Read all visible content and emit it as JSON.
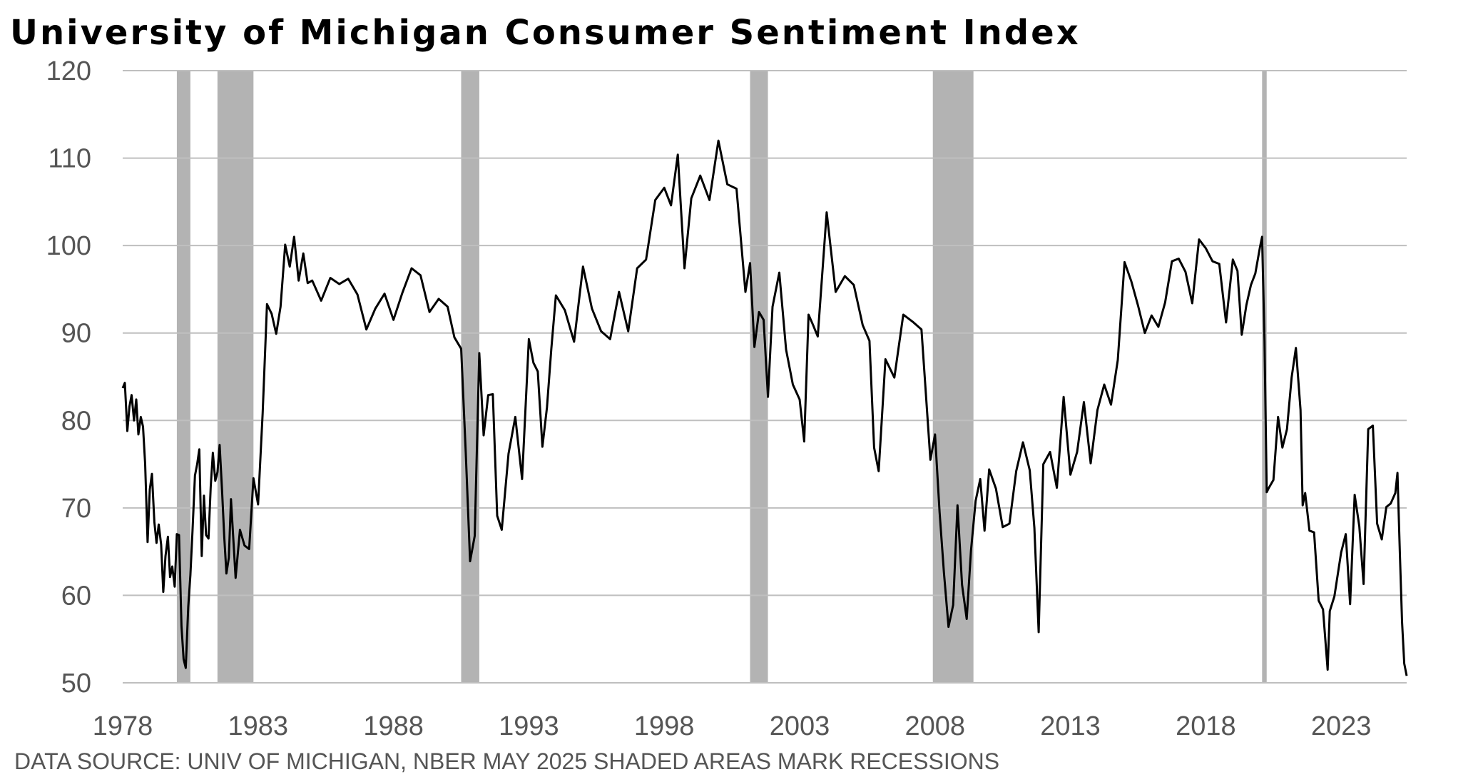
{
  "chart_data": {
    "type": "line",
    "title": "University of Michigan Consumer Sentiment Index",
    "source_note": "DATA SOURCE: UNIV OF MICHIGAN, NBER MAY 2025 SHADED AREAS MARK RECESSIONS",
    "xlabel": "",
    "ylabel": "",
    "xlim": [
      1978.0,
      2025.42
    ],
    "ylim": [
      50,
      120
    ],
    "yticks": [
      50,
      60,
      70,
      80,
      90,
      100,
      110,
      120
    ],
    "xticks": [
      1978,
      1983,
      1988,
      1993,
      1998,
      2003,
      2008,
      2013,
      2018,
      2023
    ],
    "grid": "horizontal",
    "legend": "none",
    "colors": {
      "line": "#000000",
      "grid": "#bfbfbf",
      "recession": "#b3b3b3",
      "tick": "#555555"
    },
    "recessions": [
      [
        1980.0,
        1980.5
      ],
      [
        1981.5,
        1982.83
      ],
      [
        1990.5,
        1991.17
      ],
      [
        2001.17,
        2001.83
      ],
      [
        2007.92,
        2009.42
      ],
      [
        2020.08,
        2020.25
      ]
    ],
    "series": [
      {
        "x": [
          1978.0,
          1978.08,
          1978.17,
          1978.25,
          1978.33,
          1978.42,
          1978.5,
          1978.58,
          1978.67,
          1978.75,
          1978.83,
          1978.92,
          1979.0,
          1979.08,
          1979.17,
          1979.25,
          1979.33,
          1979.42,
          1979.5,
          1979.58,
          1979.67,
          1979.75,
          1979.83,
          1979.92,
          1980.0,
          1980.08,
          1980.17,
          1980.25,
          1980.33,
          1980.42,
          1980.5,
          1980.58,
          1980.67,
          1980.75,
          1980.83,
          1980.92,
          1981.0,
          1981.08,
          1981.17,
          1981.25,
          1981.33,
          1981.42,
          1981.5,
          1981.58,
          1981.67,
          1981.75,
          1981.83,
          1981.92,
          1982.0,
          1982.17,
          1982.33,
          1982.5,
          1982.67,
          1982.83,
          1983.0,
          1983.17,
          1983.33,
          1983.5,
          1983.67,
          1983.83,
          1984.0,
          1984.17,
          1984.33,
          1984.5,
          1984.67,
          1984.83,
          1985.0,
          1985.33,
          1985.67,
          1986.0,
          1986.33,
          1986.67,
          1987.0,
          1987.33,
          1987.67,
          1988.0,
          1988.33,
          1988.67,
          1989.0,
          1989.33,
          1989.67,
          1990.0,
          1990.25,
          1990.5,
          1990.67,
          1990.83,
          1991.0,
          1991.17,
          1991.33,
          1991.5,
          1991.67,
          1991.83,
          1992.0,
          1992.25,
          1992.5,
          1992.75,
          1993.0,
          1993.17,
          1993.33,
          1993.5,
          1993.67,
          1993.83,
          1994.0,
          1994.33,
          1994.67,
          1995.0,
          1995.33,
          1995.67,
          1996.0,
          1996.33,
          1996.67,
          1997.0,
          1997.33,
          1997.67,
          1998.0,
          1998.25,
          1998.5,
          1998.75,
          1999.0,
          1999.33,
          1999.67,
          2000.0,
          2000.33,
          2000.67,
          2001.0,
          2001.17,
          2001.33,
          2001.5,
          2001.67,
          2001.83,
          2002.0,
          2002.25,
          2002.5,
          2002.75,
          2003.0,
          2003.17,
          2003.33,
          2003.5,
          2003.67,
          2004.0,
          2004.33,
          2004.67,
          2005.0,
          2005.33,
          2005.58,
          2005.75,
          2005.92,
          2006.17,
          2006.5,
          2006.83,
          2007.17,
          2007.5,
          2007.83,
          2008.0,
          2008.17,
          2008.33,
          2008.5,
          2008.67,
          2008.83,
          2009.0,
          2009.17,
          2009.33,
          2009.5,
          2009.67,
          2009.83,
          2010.0,
          2010.25,
          2010.5,
          2010.75,
          2011.0,
          2011.25,
          2011.5,
          2011.67,
          2011.83,
          2012.0,
          2012.25,
          2012.5,
          2012.75,
          2013.0,
          2013.25,
          2013.5,
          2013.75,
          2014.0,
          2014.25,
          2014.5,
          2014.75,
          2015.0,
          2015.25,
          2015.5,
          2015.75,
          2016.0,
          2016.25,
          2016.5,
          2016.75,
          2017.0,
          2017.25,
          2017.5,
          2017.75,
          2018.0,
          2018.25,
          2018.5,
          2018.75,
          2019.0,
          2019.17,
          2019.33,
          2019.5,
          2019.67,
          2019.83,
          2020.0,
          2020.08,
          2020.17,
          2020.25,
          2020.33,
          2020.5,
          2020.67,
          2020.83,
          2021.0,
          2021.17,
          2021.33,
          2021.5,
          2021.58,
          2021.67,
          2021.83,
          2022.0,
          2022.17,
          2022.33,
          2022.5,
          2022.58,
          2022.75,
          2023.0,
          2023.17,
          2023.33,
          2023.5,
          2023.67,
          2023.83,
          2024.0,
          2024.17,
          2024.33,
          2024.5,
          2024.67,
          2024.83,
          2025.0,
          2025.08,
          2025.17,
          2025.25,
          2025.33,
          2025.42
        ],
        "values": [
          83.7,
          84.3,
          78.8,
          81.6,
          82.9,
          80.0,
          82.4,
          78.4,
          80.4,
          79.3,
          75.0,
          66.1,
          72.1,
          73.9,
          68.4,
          66.0,
          68.1,
          65.8,
          60.4,
          64.5,
          66.7,
          62.1,
          63.3,
          61.0,
          67.0,
          66.9,
          56.5,
          52.7,
          51.7,
          58.7,
          62.3,
          67.4,
          73.7,
          75.0,
          76.7,
          64.5,
          71.4,
          66.9,
          66.5,
          72.4,
          76.3,
          73.1,
          74.1,
          77.2,
          72.0,
          66.8,
          62.5,
          64.3,
          71.0,
          62.0,
          67.5,
          65.7,
          65.3,
          73.4,
          70.4,
          80.8,
          93.3,
          92.2,
          89.9,
          93.0,
          100.1,
          97.6,
          101.0,
          96.0,
          99.1,
          95.7,
          96.0,
          93.7,
          96.3,
          95.6,
          96.2,
          94.4,
          90.4,
          92.8,
          94.5,
          91.5,
          94.6,
          97.4,
          96.6,
          92.4,
          93.9,
          93.0,
          89.5,
          88.2,
          76.4,
          63.9,
          66.8,
          87.7,
          78.3,
          82.9,
          83.0,
          69.1,
          67.5,
          76.2,
          80.4,
          73.3,
          89.3,
          86.6,
          85.6,
          77.0,
          81.5,
          88.2,
          94.3,
          92.6,
          89.0,
          97.6,
          92.8,
          90.2,
          89.3,
          94.7,
          90.2,
          97.4,
          98.4,
          105.2,
          106.6,
          104.6,
          110.4,
          97.4,
          105.4,
          108.0,
          105.2,
          112.0,
          107.0,
          106.5,
          94.7,
          98.0,
          88.4,
          92.4,
          91.5,
          82.7,
          93.0,
          96.9,
          88.1,
          84.1,
          82.4,
          77.6,
          92.1,
          90.9,
          89.6,
          103.8,
          94.7,
          96.5,
          95.5,
          90.9,
          89.1,
          76.9,
          74.2,
          87.0,
          84.9,
          92.1,
          91.3,
          90.4,
          75.5,
          78.4,
          69.5,
          62.6,
          56.4,
          58.9,
          70.3,
          61.2,
          57.3,
          65.1,
          70.8,
          73.3,
          67.4,
          74.4,
          72.2,
          67.8,
          68.2,
          74.2,
          77.5,
          74.3,
          67.7,
          55.8,
          75.0,
          76.4,
          72.3,
          82.7,
          73.8,
          76.4,
          82.1,
          75.1,
          81.2,
          84.1,
          81.8,
          86.9,
          98.1,
          95.9,
          93.1,
          90.0,
          92.0,
          90.7,
          93.5,
          98.2,
          98.5,
          97.0,
          93.4,
          100.7,
          99.7,
          98.2,
          97.9,
          91.2,
          98.4,
          97.1,
          89.8,
          93.2,
          95.5,
          96.8,
          99.8,
          101.0,
          89.1,
          71.8,
          72.3,
          73.2,
          80.4,
          76.9,
          79.0,
          84.9,
          88.3,
          81.2,
          70.3,
          71.7,
          67.4,
          67.2,
          59.4,
          58.4,
          51.5,
          58.2,
          59.9,
          64.9,
          67.0,
          59.0,
          71.5,
          67.9,
          61.3,
          79.0,
          79.4,
          68.2,
          66.4,
          70.1,
          70.5,
          71.7,
          74.0,
          64.7,
          57.0,
          52.2,
          50.8
        ]
      }
    ]
  }
}
